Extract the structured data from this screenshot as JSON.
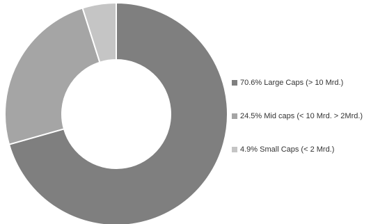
{
  "chart_data": {
    "type": "pie",
    "style": "donut",
    "title": "",
    "categories": [
      "Large Caps (> 10 Mrd.)",
      "Mid caps (< 10 Mrd. > 2Mrd.)",
      "Small Caps (< 2 Mrd.)"
    ],
    "values": [
      70.6,
      24.5,
      4.9
    ],
    "colors": [
      "#7f7f7f",
      "#a5a5a5",
      "#c5c5c5"
    ],
    "legend_position": "right",
    "legend_labels": [
      "70.6% Large Caps (> 10 Mrd.)",
      "24.5% Mid caps (< 10 Mrd. > 2Mrd.)",
      "4.9% Small Caps (< 2 Mrd.)"
    ]
  }
}
